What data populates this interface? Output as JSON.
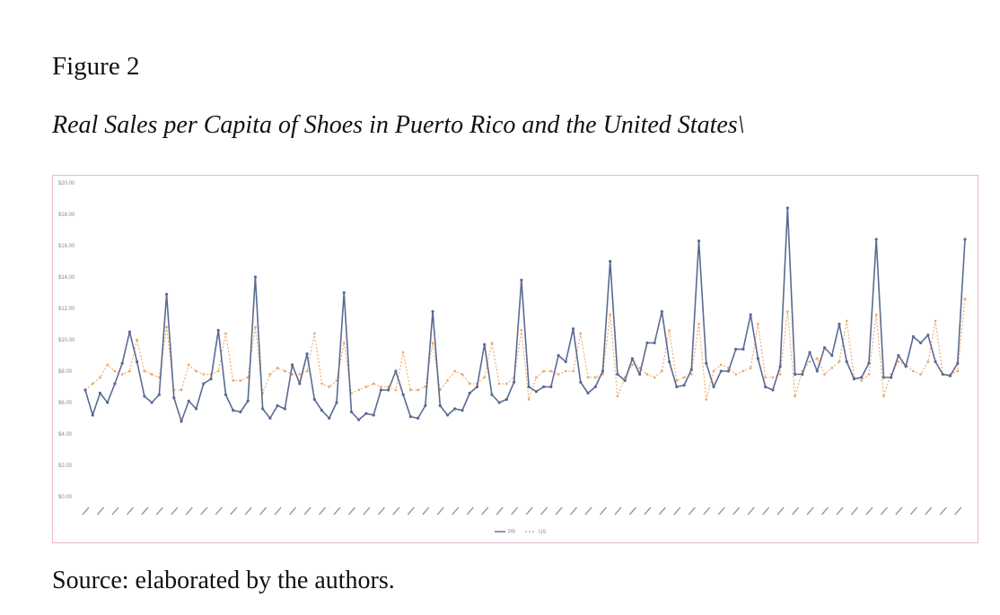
{
  "figure": {
    "label": "Figure 2",
    "title": "Real Sales per Capita of Shoes in Puerto Rico and the United States\\",
    "source": "Source: elaborated by the authors."
  },
  "colors": {
    "pr": "#5a6a92",
    "us": "#f0a868",
    "frame": "#e6b9cf",
    "grid": "#eeeeee"
  },
  "chart_data": {
    "type": "line",
    "title": "",
    "xlabel": "",
    "ylabel": "",
    "ylim": [
      0,
      20
    ],
    "yticks": [
      "$0.00",
      "$2.00",
      "$4.00",
      "$6.00",
      "$8.00",
      "$10.00",
      "$12.00",
      "$14.00",
      "$16.00",
      "$18.00",
      "$20.00"
    ],
    "grid": false,
    "legend_position": "bottom",
    "series": [
      {
        "name": "PR",
        "values": [
          6.8,
          5.2,
          6.6,
          6.0,
          7.2,
          8.5,
          10.5,
          8.6,
          6.4,
          6.0,
          6.5,
          12.9,
          6.3,
          4.8,
          6.1,
          5.6,
          7.2,
          7.5,
          10.6,
          6.5,
          5.5,
          5.4,
          6.1,
          14.0,
          5.6,
          5.0,
          5.8,
          5.6,
          8.4,
          7.2,
          9.1,
          6.2,
          5.5,
          5.0,
          6.0,
          13.0,
          5.4,
          4.9,
          5.3,
          5.2,
          6.8,
          6.8,
          8.0,
          6.5,
          5.1,
          5.0,
          5.8,
          11.8,
          5.8,
          5.2,
          5.6,
          5.5,
          6.6,
          7.0,
          9.7,
          6.5,
          6.0,
          6.2,
          7.3,
          13.8,
          7.0,
          6.7,
          7.0,
          7.0,
          9.0,
          8.6,
          10.7,
          7.3,
          6.6,
          7.0,
          8.0,
          15.0,
          7.8,
          7.4,
          8.8,
          7.8,
          9.8,
          9.8,
          11.8,
          8.6,
          7.0,
          7.1,
          8.1,
          16.3,
          8.5,
          7.0,
          8.0,
          8.0,
          9.4,
          9.4,
          11.6,
          8.8,
          7.0,
          6.8,
          8.3,
          18.4,
          7.8,
          7.8,
          9.2,
          8.0,
          9.5,
          9.0,
          11.0,
          8.6,
          7.5,
          7.6,
          8.5,
          16.4,
          7.6,
          7.6,
          9.0,
          8.3,
          10.2,
          9.8,
          10.3,
          8.6,
          7.8,
          7.7,
          8.5,
          16.4
        ]
      },
      {
        "name": "US",
        "values": [
          6.8,
          7.2,
          7.6,
          8.4,
          8.0,
          7.8,
          8.0,
          10.0,
          8.0,
          7.8,
          7.6,
          10.8,
          6.8,
          6.8,
          8.4,
          8.0,
          7.8,
          7.8,
          8.0,
          10.4,
          7.4,
          7.4,
          7.6,
          10.8,
          6.6,
          7.8,
          8.2,
          8.0,
          7.8,
          7.8,
          8.0,
          10.4,
          7.2,
          7.0,
          7.4,
          9.8,
          6.6,
          6.8,
          7.0,
          7.2,
          7.0,
          7.0,
          6.8,
          9.2,
          6.8,
          6.8,
          7.0,
          9.8,
          6.8,
          7.4,
          8.0,
          7.8,
          7.2,
          7.2,
          7.6,
          9.8,
          7.2,
          7.2,
          7.6,
          10.6,
          6.2,
          7.6,
          8.0,
          8.0,
          7.8,
          8.0,
          8.0,
          10.4,
          7.6,
          7.6,
          7.8,
          11.6,
          6.4,
          7.6,
          8.4,
          8.2,
          7.8,
          7.6,
          8.0,
          10.6,
          7.4,
          7.6,
          7.8,
          11.0,
          6.2,
          8.0,
          8.4,
          8.2,
          7.8,
          8.0,
          8.2,
          11.0,
          7.6,
          7.6,
          7.8,
          11.8,
          6.4,
          8.0,
          8.6,
          8.8,
          7.8,
          8.2,
          8.6,
          11.2,
          7.6,
          7.4,
          7.8,
          11.6,
          6.4,
          7.8,
          8.6,
          8.4,
          8.0,
          7.8,
          8.6,
          11.2,
          7.8,
          7.8,
          8.0,
          12.6
        ]
      }
    ]
  }
}
